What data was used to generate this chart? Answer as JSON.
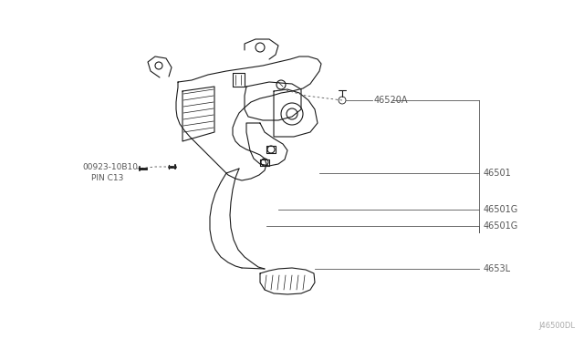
{
  "bg_color": "#ffffff",
  "line_color": "#1a1a1a",
  "label_color": "#555555",
  "fig_width": 6.4,
  "fig_height": 3.72,
  "watermark": "J46500DL",
  "label_46520A": "46520A",
  "label_46501": "46501",
  "label_46501G_1": "46501G",
  "label_46501G_2": "46501G",
  "label_4653L": "4653L",
  "label_pin_num": "00923-10B10",
  "label_pin_name": "PIN C13"
}
